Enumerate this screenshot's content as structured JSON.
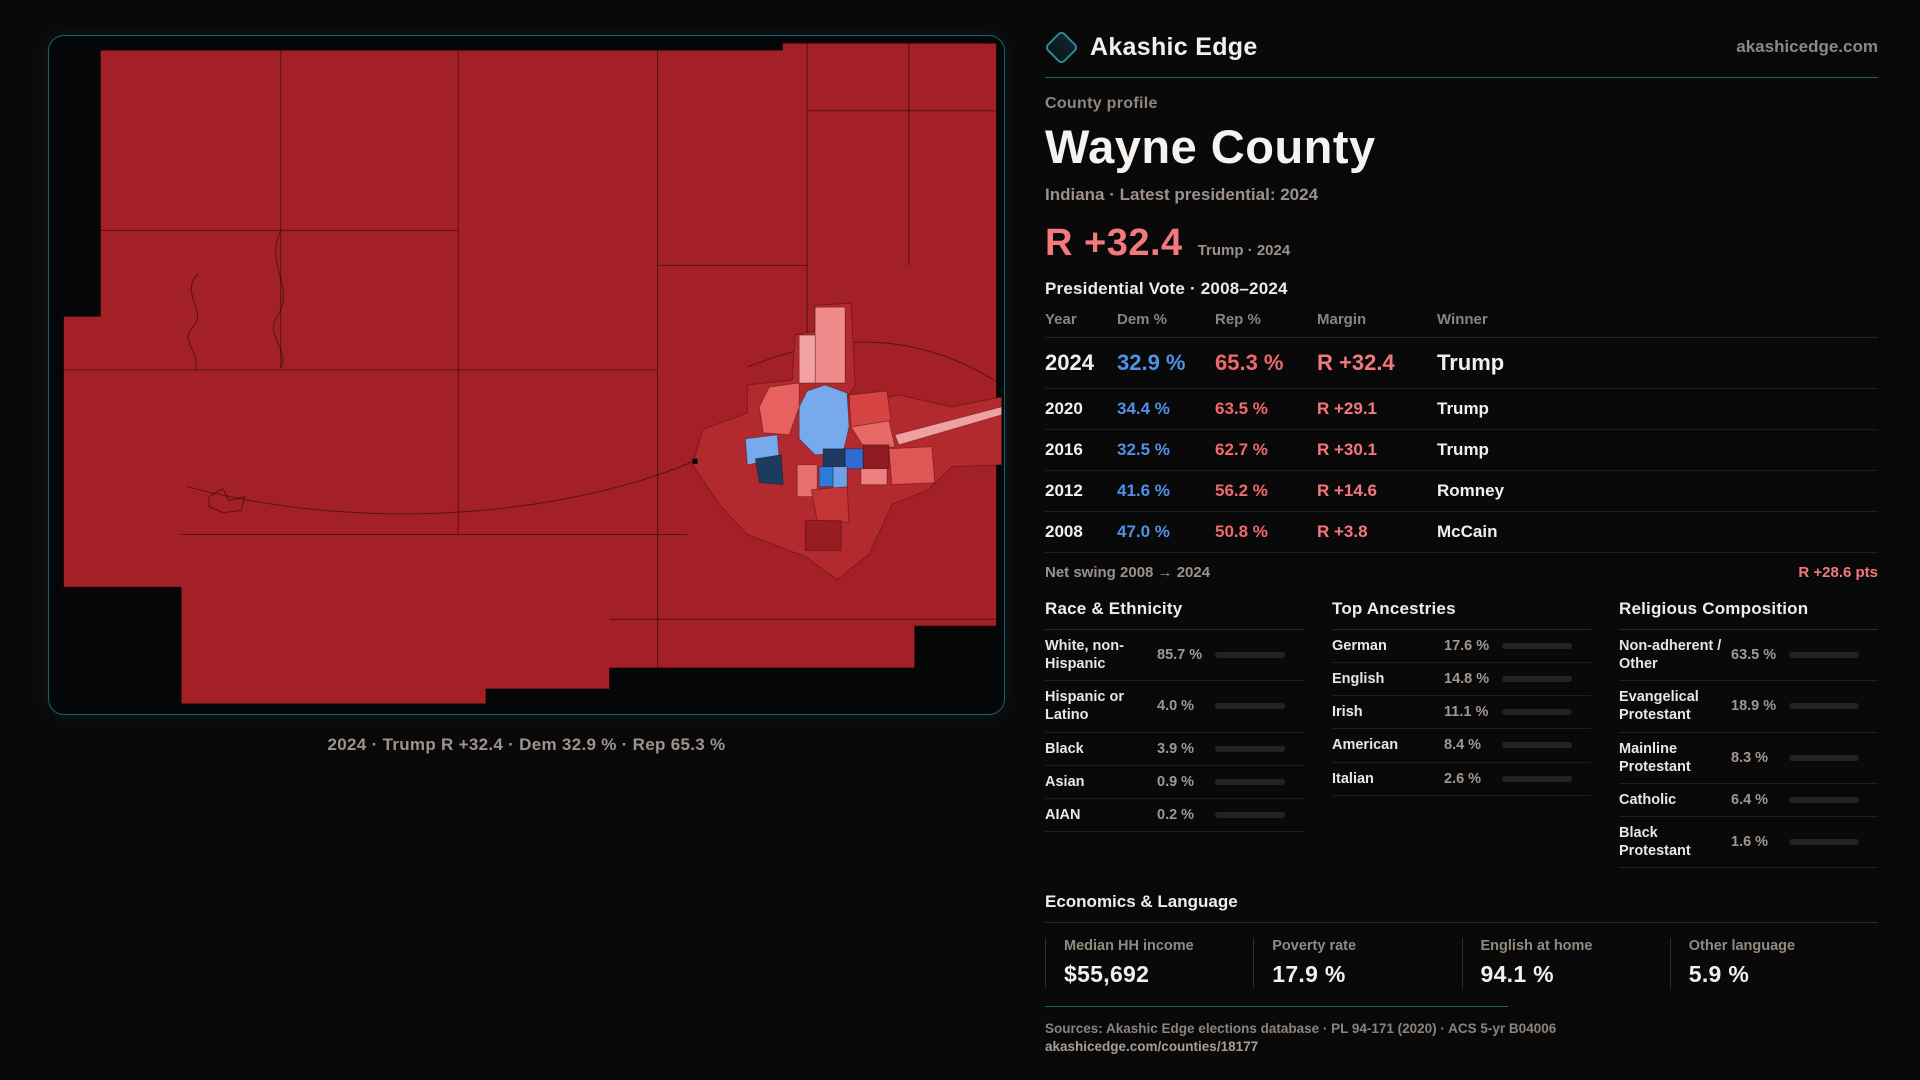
{
  "brand": {
    "name": "Akashic Edge",
    "domain": "akashicedge.com"
  },
  "profile": {
    "eyebrow": "County profile",
    "title": "Wayne County",
    "subtitle": "Indiana · Latest presidential: 2024",
    "headline_margin": "R +32.4",
    "headline_context": "Trump · 2024"
  },
  "vote_table": {
    "title": "Presidential Vote · 2008–2024",
    "columns": {
      "year": "Year",
      "dem": "Dem %",
      "rep": "Rep %",
      "margin": "Margin",
      "winner": "Winner"
    },
    "rows": [
      {
        "year": "2024",
        "dem": "32.9 %",
        "rep": "65.3 %",
        "margin": "R +32.4",
        "winner": "Trump"
      },
      {
        "year": "2020",
        "dem": "34.4 %",
        "rep": "63.5 %",
        "margin": "R +29.1",
        "winner": "Trump"
      },
      {
        "year": "2016",
        "dem": "32.5 %",
        "rep": "62.7 %",
        "margin": "R +30.1",
        "winner": "Trump"
      },
      {
        "year": "2012",
        "dem": "41.6 %",
        "rep": "56.2 %",
        "margin": "R +14.6",
        "winner": "Romney"
      },
      {
        "year": "2008",
        "dem": "47.0 %",
        "rep": "50.8 %",
        "margin": "R +3.8",
        "winner": "McCain"
      }
    ],
    "net_swing_label": "Net swing 2008 → 2024",
    "net_swing_value": "R +28.6 pts"
  },
  "demographics": {
    "race": {
      "title": "Race & Ethnicity",
      "rows": [
        {
          "label": "White, non-Hispanic",
          "value": "85.7 %",
          "pct": 85.7,
          "color": "#a9c0d8"
        },
        {
          "label": "Hispanic or Latino",
          "value": "4.0 %",
          "pct": 4.0,
          "color": "#e29a3a"
        },
        {
          "label": "Black",
          "value": "3.9 %",
          "pct": 3.9,
          "color": "#7e5ed6"
        },
        {
          "label": "Asian",
          "value": "0.9 %",
          "pct": 0.9,
          "color": "#3fbf9b"
        },
        {
          "label": "AIAN",
          "value": "0.2 %",
          "pct": 0.2,
          "color": "#a9c0d8"
        }
      ]
    },
    "ancestries": {
      "title": "Top Ancestries",
      "rows": [
        {
          "label": "German",
          "value": "17.6 %",
          "pct": 17.6,
          "color": "#a9c0d8"
        },
        {
          "label": "English",
          "value": "14.8 %",
          "pct": 14.8,
          "color": "#a9c0d8"
        },
        {
          "label": "Irish",
          "value": "11.1 %",
          "pct": 11.1,
          "color": "#a9c0d8"
        },
        {
          "label": "American",
          "value": "8.4 %",
          "pct": 8.4,
          "color": "#a9c0d8"
        },
        {
          "label": "Italian",
          "value": "2.6 %",
          "pct": 2.6,
          "color": "#a9c0d8"
        }
      ]
    },
    "religion": {
      "title": "Religious Composition",
      "rows": [
        {
          "label": "Non-adherent / Other",
          "value": "63.5 %",
          "pct": 63.5,
          "color": "#8296ae"
        },
        {
          "label": "Evangelical Protestant",
          "value": "18.9 %",
          "pct": 18.9,
          "color": "#ee686e"
        },
        {
          "label": "Mainline Protestant",
          "value": "8.3 %",
          "pct": 8.3,
          "color": "#4a8fe6"
        },
        {
          "label": "Catholic",
          "value": "6.4 %",
          "pct": 6.4,
          "color": "#e2a83a"
        },
        {
          "label": "Black Protestant",
          "value": "1.6 %",
          "pct": 1.6,
          "color": "#8a68e0"
        }
      ]
    }
  },
  "economics": {
    "title": "Economics & Language",
    "stats": [
      {
        "label": "Median HH income",
        "value": "$55,692"
      },
      {
        "label": "Poverty rate",
        "value": "17.9 %"
      },
      {
        "label": "English at home",
        "value": "94.1 %"
      },
      {
        "label": "Other language",
        "value": "5.9 %"
      }
    ]
  },
  "footer": {
    "sources": "Sources: Akashic Edge elections database · PL 94-171 (2020) · ACS 5-yr B04006",
    "permalink": "akashicedge.com/counties/18177"
  },
  "map": {
    "caption": "2024 · Trump R +32.4 · Dem 32.9 % · Rep 65.3 %",
    "palette": {
      "rep_dark": "#a32026",
      "rep_bright": "#d54343",
      "rep_light": "#ee8b8b",
      "dem_light": "#77aaec",
      "dem_mid": "#2f6bd0",
      "dem_dark": "#1d3b5e",
      "frame": "#1d5f67"
    }
  },
  "chart_data": [
    {
      "type": "table",
      "title": "Presidential Vote · 2008–2024",
      "columns": [
        "Year",
        "Dem %",
        "Rep %",
        "Margin",
        "Winner"
      ],
      "rows": [
        [
          2024,
          32.9,
          65.3,
          "R +32.4",
          "Trump"
        ],
        [
          2020,
          34.4,
          63.5,
          "R +29.1",
          "Trump"
        ],
        [
          2016,
          32.5,
          62.7,
          "R +30.1",
          "Trump"
        ],
        [
          2012,
          41.6,
          56.2,
          "R +14.6",
          "Romney"
        ],
        [
          2008,
          47.0,
          50.8,
          "R +3.8",
          "McCain"
        ]
      ],
      "annotation": "Net swing 2008 → 2024: R +28.6 pts"
    },
    {
      "type": "bar",
      "title": "Race & Ethnicity",
      "unit": "%",
      "categories": [
        "White, non-Hispanic",
        "Hispanic or Latino",
        "Black",
        "Asian",
        "AIAN"
      ],
      "values": [
        85.7,
        4.0,
        3.9,
        0.9,
        0.2
      ],
      "xlim": [
        0,
        100
      ]
    },
    {
      "type": "bar",
      "title": "Top Ancestries",
      "unit": "%",
      "categories": [
        "German",
        "English",
        "Irish",
        "American",
        "Italian"
      ],
      "values": [
        17.6,
        14.8,
        11.1,
        8.4,
        2.6
      ],
      "xlim": [
        0,
        100
      ]
    },
    {
      "type": "bar",
      "title": "Religious Composition",
      "unit": "%",
      "categories": [
        "Non-adherent / Other",
        "Evangelical Protestant",
        "Mainline Protestant",
        "Catholic",
        "Black Protestant"
      ],
      "values": [
        63.5,
        18.9,
        8.3,
        6.4,
        1.6
      ],
      "xlim": [
        0,
        100
      ]
    },
    {
      "type": "heatmap",
      "title": "Wayne County precinct-level presidential margin 2024 (choropleth map)",
      "caption": "2024 · Trump R +32.4 · Dem 32.9 % · Rep 65.3 %"
    }
  ]
}
